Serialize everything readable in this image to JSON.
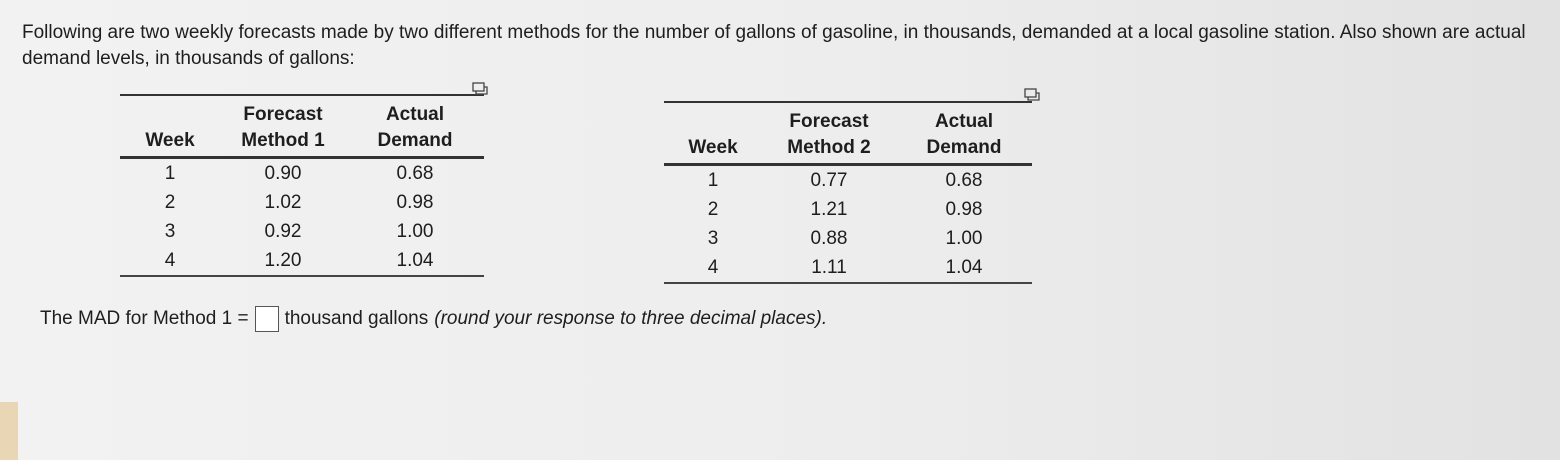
{
  "intro": "Following are two weekly forecasts made by two different methods for the number of gallons of gasoline, in thousands, demanded at a local gasoline station. Also shown are actual demand levels, in thousands of gallons:",
  "table1": {
    "headers": {
      "week": "Week",
      "forecast": [
        "Forecast",
        "Method 1"
      ],
      "actual": [
        "Actual",
        "Demand"
      ]
    },
    "rows": [
      {
        "week": "1",
        "forecast": "0.90",
        "actual": "0.68"
      },
      {
        "week": "2",
        "forecast": "1.02",
        "actual": "0.98"
      },
      {
        "week": "3",
        "forecast": "0.92",
        "actual": "1.00"
      },
      {
        "week": "4",
        "forecast": "1.20",
        "actual": "1.04"
      }
    ],
    "icon": "copy-to-clipboard-icon"
  },
  "table2": {
    "headers": {
      "week": "Week",
      "forecast": [
        "Forecast",
        "Method 2"
      ],
      "actual": [
        "Actual",
        "Demand"
      ]
    },
    "rows": [
      {
        "week": "1",
        "forecast": "0.77",
        "actual": "0.68"
      },
      {
        "week": "2",
        "forecast": "1.21",
        "actual": "0.98"
      },
      {
        "week": "3",
        "forecast": "0.88",
        "actual": "1.00"
      },
      {
        "week": "4",
        "forecast": "1.11",
        "actual": "1.04"
      }
    ],
    "icon": "copy-to-clipboard-icon"
  },
  "question": {
    "prefix": "The MAD for Method 1 =",
    "answer_value": "",
    "suffix": "thousand gallons",
    "hint": "(round your response to three decimal places)."
  }
}
